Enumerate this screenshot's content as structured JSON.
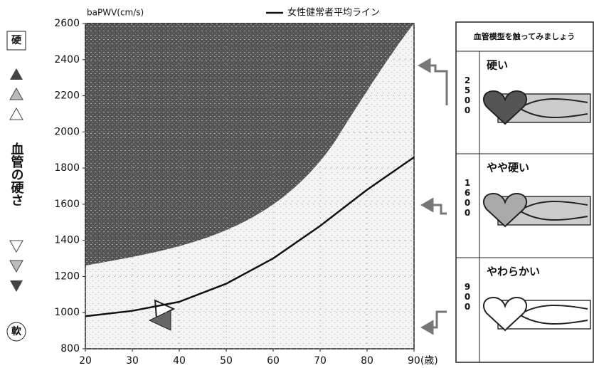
{
  "chart_data": {
    "type": "line",
    "y_label": "baPWV(cm/s)",
    "x": [
      20,
      30,
      40,
      50,
      60,
      70,
      80,
      90
    ],
    "series": [
      {
        "name": "女性健常者平均ライン",
        "color": "#111111",
        "values": [
          980,
          1010,
          1060,
          1160,
          1300,
          1480,
          1680,
          1860
        ]
      }
    ],
    "xlim": [
      20,
      90
    ],
    "xticks": [
      20,
      30,
      40,
      50,
      60,
      70,
      80,
      {
        "value": 90,
        "label": "90(歳)"
      }
    ],
    "ylim": [
      800,
      2600
    ],
    "yticks": [
      800,
      1000,
      1200,
      1400,
      1600,
      1800,
      2000,
      2200,
      2400,
      2600
    ],
    "grid": true,
    "legend": "top-right"
  },
  "scale": {
    "hard": "硬",
    "caption": "血管の硬さ",
    "soft": "軟"
  },
  "panel": {
    "title": "血管模型を触ってみましょう",
    "levels": [
      {
        "label": "硬い",
        "value": "2500"
      },
      {
        "label": "やや硬い",
        "value": "1600"
      },
      {
        "label": "やわらかい",
        "value": "900"
      }
    ]
  }
}
